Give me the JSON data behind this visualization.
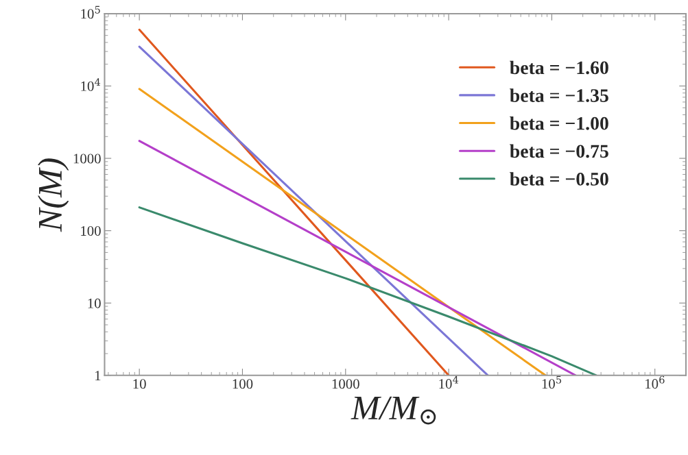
{
  "chart_data": {
    "type": "line",
    "xlabel": "M/M$_{⊙}$",
    "ylabel": "N(M)",
    "log": "xy",
    "grid": false,
    "legend": "top right",
    "marker": "none",
    "line_style": "solid",
    "xlim": [
      4.6,
      2000000
    ],
    "ylim": [
      1,
      100000
    ],
    "xticks": [
      10,
      100,
      1000,
      {
        "value": 10000,
        "label": "10$^{4}$"
      },
      {
        "value": 100000,
        "label": "10$^{5}$"
      },
      {
        "value": 1000000,
        "label": "10$^{6}$"
      }
    ],
    "yticks": [
      1,
      10,
      100,
      1000,
      {
        "value": 10000,
        "label": "10$^{4}$"
      },
      {
        "value": 100000,
        "label": "10$^{5}$"
      }
    ],
    "series": [
      {
        "name": "beta = −1.60",
        "color": "#e0581e",
        "x": [
          10,
          10000
        ],
        "values": [
          60000,
          1
        ]
      },
      {
        "name": "beta = −1.35",
        "color": "#7b76d6",
        "x": [
          10,
          24000
        ],
        "values": [
          35000,
          1
        ]
      },
      {
        "name": "beta = −1.00",
        "color": "#f2a11c",
        "x": [
          10,
          87000
        ],
        "values": [
          9100,
          1
        ]
      },
      {
        "name": "beta = −0.75",
        "color": "#b43fc9",
        "x": [
          10,
          170000
        ],
        "values": [
          1740,
          1
        ]
      },
      {
        "name": "beta = −0.50",
        "color": "#3a8a6c",
        "x": [
          10,
          100,
          1000,
          10000,
          100000,
          270000
        ],
        "values": [
          210,
          67,
          22,
          6.5,
          1.84,
          1
        ]
      }
    ]
  }
}
